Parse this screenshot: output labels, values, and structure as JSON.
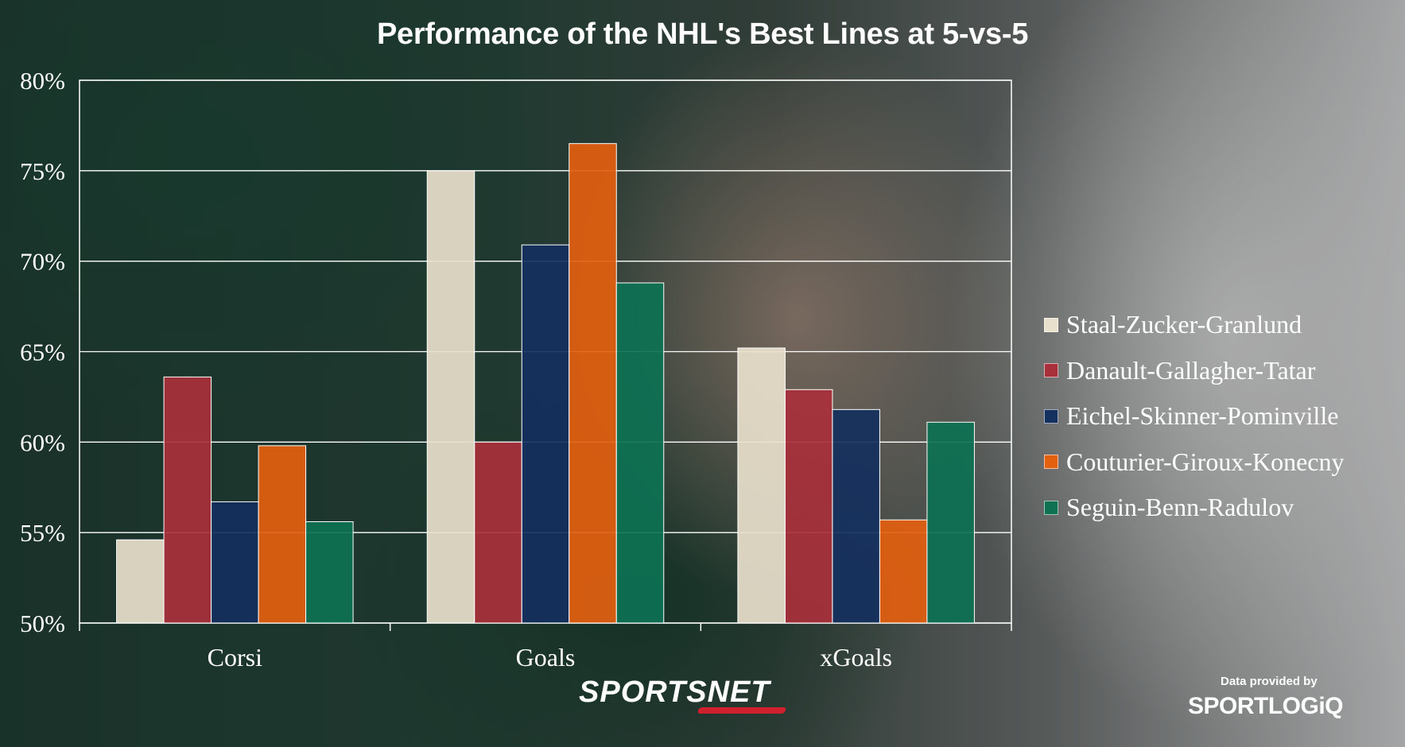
{
  "header": {
    "title": "Performance of the NHL's Best Lines at 5-vs-5"
  },
  "chart_data": {
    "type": "bar",
    "title": "Performance of the NHL's Best Lines at 5-vs-5",
    "categories": [
      "Corsi",
      "Goals",
      "xGoals"
    ],
    "series": [
      {
        "name": "Staal-Zucker-Granlund",
        "color": "#e8e0cc",
        "values": [
          54.6,
          75.0,
          65.2
        ]
      },
      {
        "name": "Danault-Gallagher-Tatar",
        "color": "#a8303b",
        "values": [
          63.6,
          60.0,
          62.9
        ]
      },
      {
        "name": "Eichel-Skinner-Pominville",
        "color": "#13305e",
        "values": [
          56.7,
          70.9,
          61.8
        ]
      },
      {
        "name": "Couturier-Giroux-Konecny",
        "color": "#e3600f",
        "values": [
          59.8,
          76.5,
          55.7
        ]
      },
      {
        "name": "Seguin-Benn-Radulov",
        "color": "#0d7152",
        "values": [
          55.6,
          68.8,
          61.1
        ]
      }
    ],
    "yticks": [
      "50%",
      "55%",
      "60%",
      "65%",
      "70%",
      "75%",
      "80%"
    ],
    "ylim": [
      50,
      80
    ],
    "xlabel": "",
    "ylabel": "",
    "grid": true,
    "legend": "right"
  },
  "footer": {
    "brand": "SPORTSNET",
    "provided_by": "Data provided by",
    "data_brand": "SPORTLOGiQ"
  }
}
